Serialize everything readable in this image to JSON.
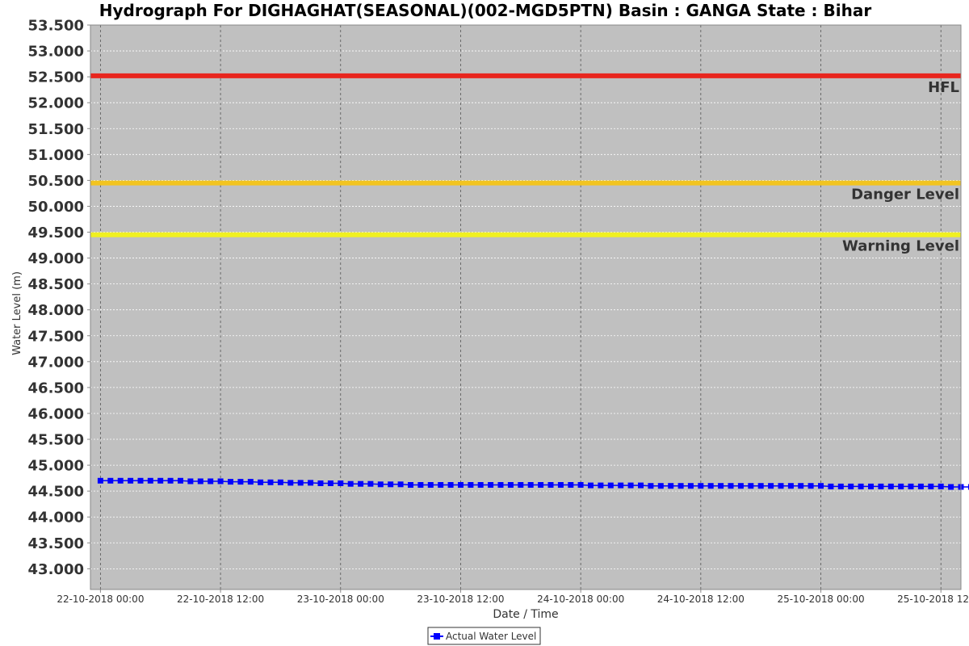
{
  "chart_data": {
    "type": "line",
    "title": "Hydrograph For DIGHAGHAT(SEASONAL)(002-MGD5PTN) Basin : GANGA State : Bihar",
    "xlabel": "Date / Time",
    "ylabel": "Water Level (m)",
    "ylim": [
      42.6,
      53.5
    ],
    "y_ticks": [
      "53.500",
      "53.000",
      "52.500",
      "52.000",
      "51.500",
      "51.000",
      "50.500",
      "50.000",
      "49.500",
      "49.000",
      "48.500",
      "48.000",
      "47.500",
      "47.000",
      "46.500",
      "46.000",
      "45.500",
      "45.000",
      "44.500",
      "44.000",
      "43.500",
      "43.000"
    ],
    "xlim": [
      "2018-10-21 23:00",
      "2018-10-25 14:00"
    ],
    "x_tick_labels": [
      "22-10-2018 00:00",
      "22-10-2018 12:00",
      "23-10-2018 00:00",
      "23-10-2018 12:00",
      "24-10-2018 00:00",
      "24-10-2018 12:00",
      "25-10-2018 00:00",
      "25-10-2018 12:00"
    ],
    "grid": true,
    "background": "#c0c0c0",
    "reference_lines": [
      {
        "label": "HFL",
        "value": 52.52,
        "color": "#e8261e"
      },
      {
        "label": "Danger Level",
        "value": 50.45,
        "color": "#f2c420"
      },
      {
        "label": "Warning Level",
        "value": 49.45,
        "color": "#f0f020"
      }
    ],
    "series": [
      {
        "name": "Actual Water Level",
        "color": "#0000ff",
        "marker": "square",
        "start": "2018-10-22 00:00",
        "interval_hours": 1,
        "values": [
          44.7,
          44.7,
          44.7,
          44.7,
          44.7,
          44.7,
          44.7,
          44.7,
          44.7,
          44.69,
          44.69,
          44.69,
          44.69,
          44.68,
          44.68,
          44.68,
          44.67,
          44.67,
          44.67,
          44.66,
          44.66,
          44.66,
          44.65,
          44.65,
          44.65,
          44.64,
          44.64,
          44.64,
          44.63,
          44.63,
          44.63,
          44.62,
          44.62,
          44.62,
          44.62,
          44.62,
          44.62,
          44.62,
          44.62,
          44.62,
          44.62,
          44.62,
          44.62,
          44.62,
          44.62,
          44.62,
          44.62,
          44.62,
          44.62,
          44.61,
          44.61,
          44.61,
          44.61,
          44.61,
          44.61,
          44.6,
          44.6,
          44.6,
          44.6,
          44.6,
          44.6,
          44.6,
          44.6,
          44.6,
          44.6,
          44.6,
          44.6,
          44.6,
          44.6,
          44.6,
          44.6,
          44.6,
          44.6,
          44.59,
          44.59,
          44.59,
          44.59,
          44.59,
          44.59,
          44.59,
          44.59,
          44.59,
          44.59,
          44.59,
          44.59,
          44.58,
          44.58,
          44.58
        ]
      }
    ],
    "legend_position": "bottom-center"
  }
}
